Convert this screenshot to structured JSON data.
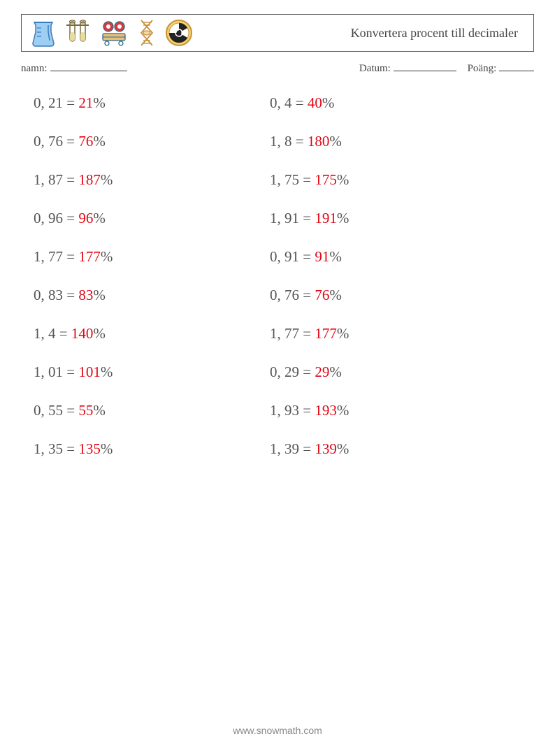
{
  "header": {
    "title": "Konvertera procent till decimaler"
  },
  "form": {
    "name_label": "namn:",
    "date_label": "Datum:",
    "score_label": "Poäng:",
    "name_line_width": 110,
    "date_line_width": 90,
    "score_line_width": 50
  },
  "icons": {
    "beaker_line": "#3b7bbf",
    "beaker_fill": "#9ecff2",
    "tubes_line": "#7a6a3a",
    "tubes_fill": "#e8dca0",
    "cart_line": "#2a6b8f",
    "cart_red": "#d73a3a",
    "cart_base": "#e8c078",
    "dna_line": "#c7923e",
    "dna_fill": "#f0d9a8",
    "rad_ring": "#c7923e",
    "rad_fill": "#f2d56b",
    "rad_black": "#222222"
  },
  "underline_color": "#333333",
  "text_color": "#555555",
  "answer_color": "#e30613",
  "problems": {
    "left": [
      {
        "d": "0, 21",
        "a": "21"
      },
      {
        "d": "0, 76",
        "a": "76"
      },
      {
        "d": "1, 87",
        "a": "187"
      },
      {
        "d": "0, 96",
        "a": "96"
      },
      {
        "d": "1, 77",
        "a": "177"
      },
      {
        "d": "0, 83",
        "a": "83"
      },
      {
        "d": "1, 4",
        "a": "140"
      },
      {
        "d": "1, 01",
        "a": "101"
      },
      {
        "d": "0, 55",
        "a": "55"
      },
      {
        "d": "1, 35",
        "a": "135"
      }
    ],
    "right": [
      {
        "d": "0, 4",
        "a": "40"
      },
      {
        "d": "1, 8",
        "a": "180"
      },
      {
        "d": "1, 75",
        "a": "175"
      },
      {
        "d": "1, 91",
        "a": "191"
      },
      {
        "d": "0, 91",
        "a": "91"
      },
      {
        "d": "0, 76",
        "a": "76"
      },
      {
        "d": "1, 77",
        "a": "177"
      },
      {
        "d": "0, 29",
        "a": "29"
      },
      {
        "d": "1, 93",
        "a": "193"
      },
      {
        "d": "1, 39",
        "a": "139"
      }
    ]
  },
  "footer": {
    "text": "www.snowmath.com"
  }
}
